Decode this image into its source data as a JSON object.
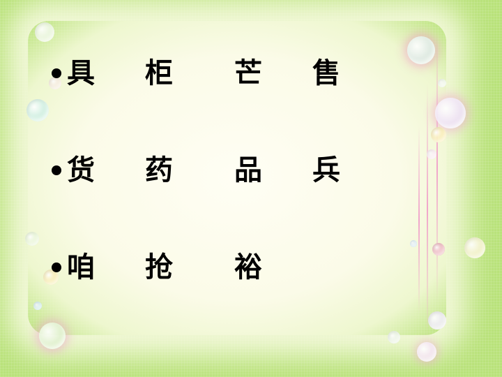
{
  "rows": [
    [
      "具",
      "柜",
      "芒",
      "售"
    ],
    [
      "货",
      "药",
      "品",
      "兵"
    ],
    [
      "咱",
      "抢",
      "裕"
    ]
  ]
}
